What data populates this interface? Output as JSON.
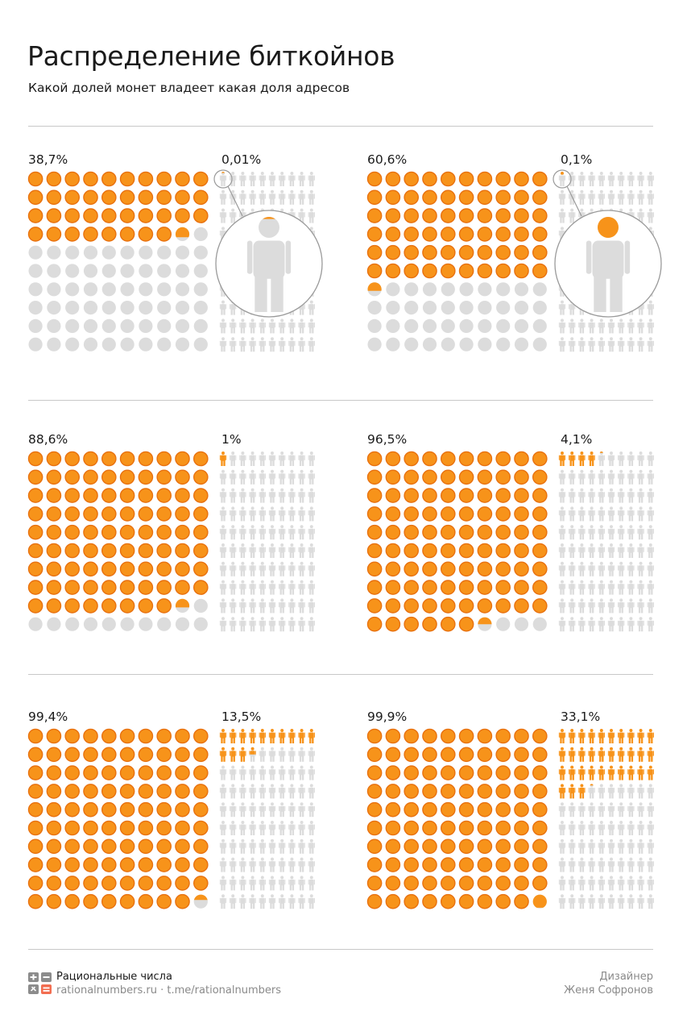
{
  "title": "Распределение биткойнов",
  "subtitle": "Какой долей монет владеет какая доля адресов",
  "colors": {
    "accent": "#f7931a",
    "accent_ring": "#e8710f",
    "empty": "#dcdcdc",
    "divider": "#c8c8c8"
  },
  "chart_data": [
    {
      "type": "waffle",
      "coins_label": "38,7%",
      "coins_share": 38.7,
      "addresses_label": "0,01%",
      "addresses_share": 0.01,
      "magnified": true
    },
    {
      "type": "waffle",
      "coins_label": "60,6%",
      "coins_share": 60.6,
      "addresses_label": "0,1%",
      "addresses_share": 0.1,
      "magnified": true
    },
    {
      "type": "waffle",
      "coins_label": "88,6%",
      "coins_share": 88.6,
      "addresses_label": "1%",
      "addresses_share": 1.0,
      "magnified": false
    },
    {
      "type": "waffle",
      "coins_label": "96,5%",
      "coins_share": 96.5,
      "addresses_label": "4,1%",
      "addresses_share": 4.1,
      "magnified": false
    },
    {
      "type": "waffle",
      "coins_label": "99,4%",
      "coins_share": 99.4,
      "addresses_label": "13,5%",
      "addresses_share": 13.5,
      "magnified": false
    },
    {
      "type": "waffle",
      "coins_label": "99,9%",
      "coins_share": 99.9,
      "addresses_label": "33,1%",
      "addresses_share": 33.1,
      "magnified": false
    }
  ],
  "footer": {
    "brand": "Рациональные числа",
    "links": "rationalnumbers.ru · t.me/rationalnumbers",
    "role": "Дизайнер",
    "designer": "Женя Софронов"
  }
}
